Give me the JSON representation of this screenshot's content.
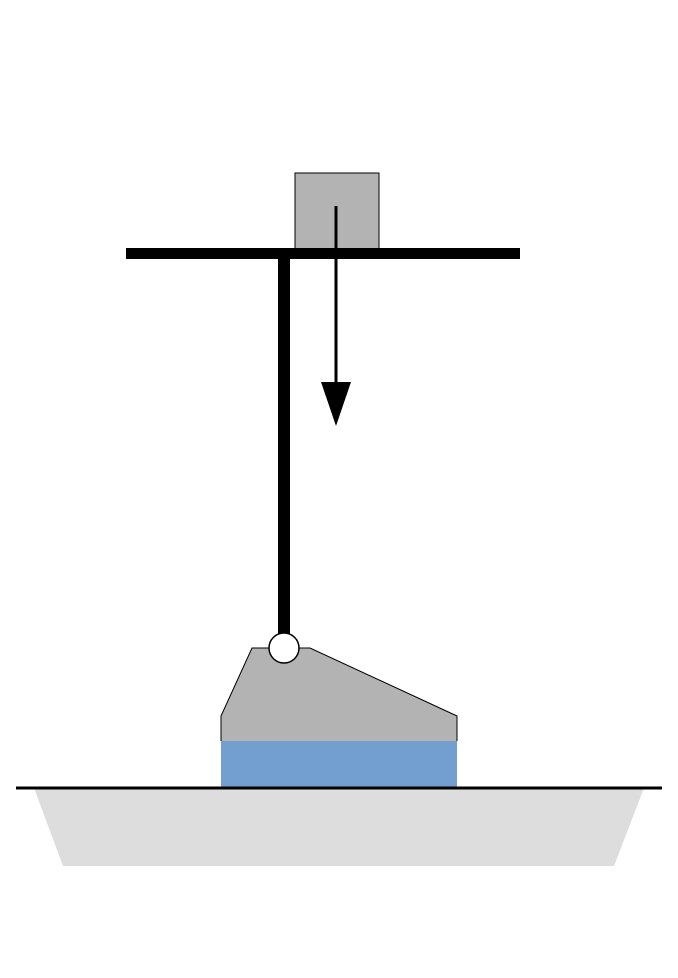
{
  "diagram": {
    "components": [
      {
        "id": "weight-block",
        "role": "load mass"
      },
      {
        "id": "crossbar",
        "role": "horizontal beam"
      },
      {
        "id": "vertical-rod",
        "role": "load rod"
      },
      {
        "id": "force-arrow",
        "role": "downward force"
      },
      {
        "id": "pivot-joint",
        "role": "hinge"
      },
      {
        "id": "indenter-body",
        "role": "loading head"
      },
      {
        "id": "specimen-layer",
        "role": "test specimen"
      },
      {
        "id": "base-surface",
        "role": "ground line"
      },
      {
        "id": "support-platform",
        "role": "base support"
      }
    ]
  },
  "colors": {
    "weight_block_fill": "#b3b3b3",
    "indenter_fill": "#b3b3b3",
    "specimen_fill": "#729fcf",
    "platform_fill": "#dddddd",
    "line_color": "#000000",
    "pivot_fill": "#ffffff"
  }
}
